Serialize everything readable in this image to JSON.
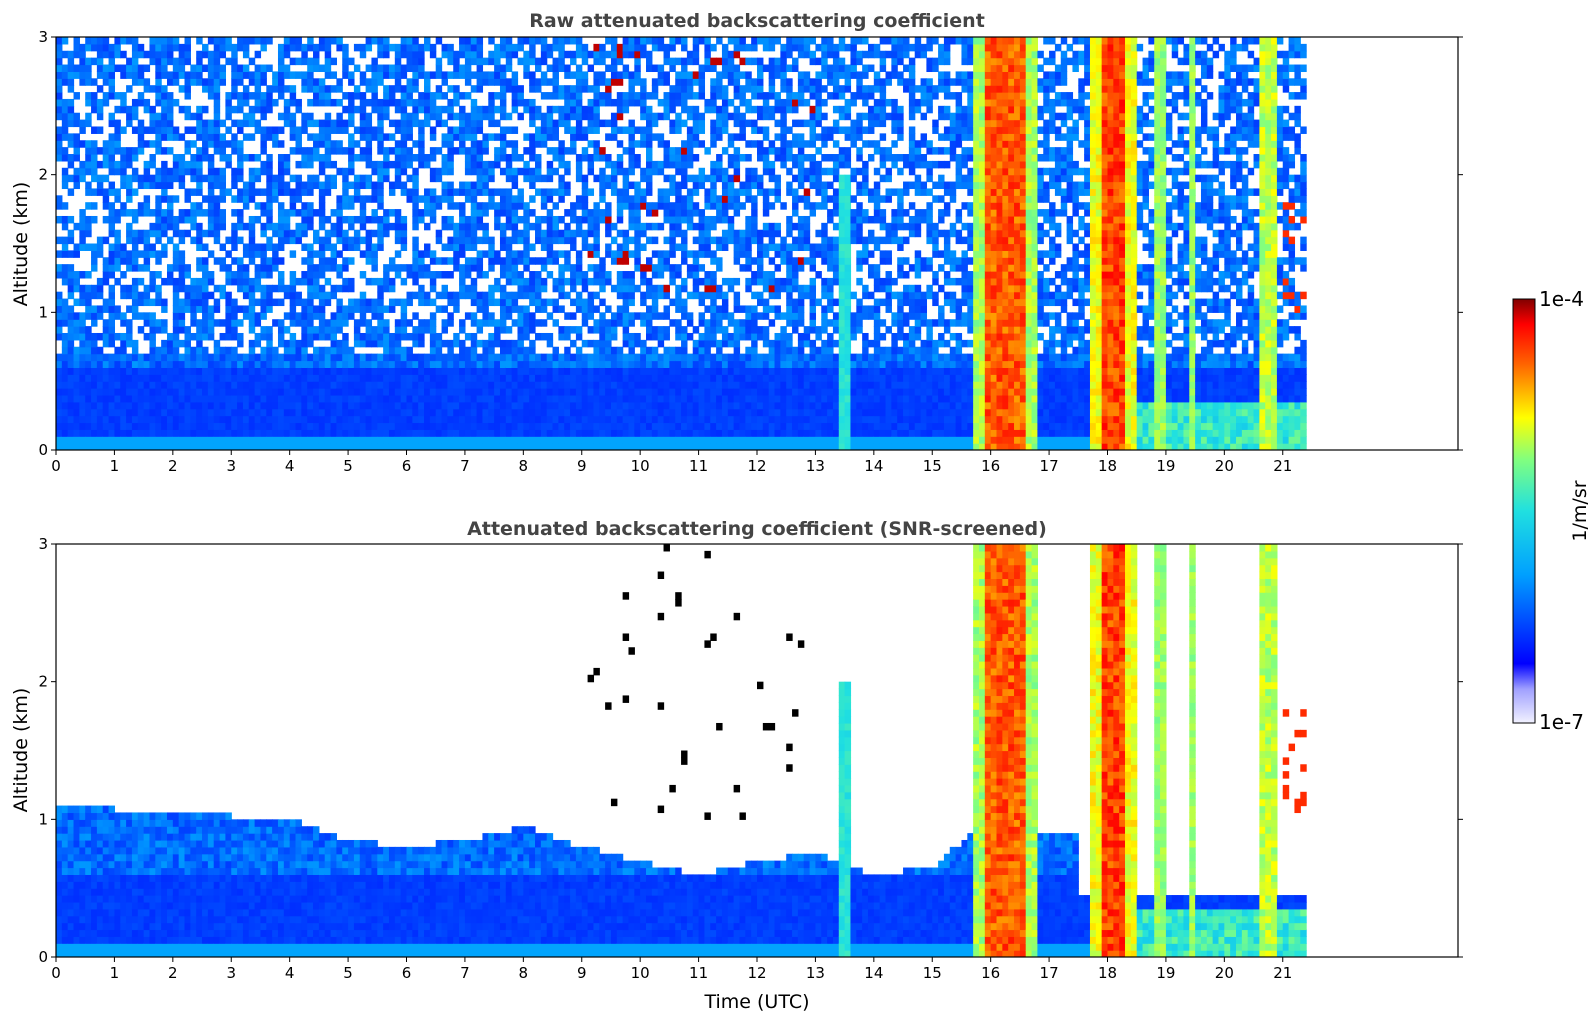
{
  "chart_data": [
    {
      "type": "heatmap",
      "title": "Raw attenuated backscattering coefficient",
      "xlabel": "",
      "ylabel": "Altitude (km)",
      "xlim": [
        0,
        24
      ],
      "ylim": [
        0,
        3
      ],
      "xticks": [
        "0",
        "1",
        "2",
        "3",
        "4",
        "5",
        "6",
        "7",
        "8",
        "9",
        "10",
        "11",
        "12",
        "13",
        "14",
        "15",
        "16",
        "17",
        "18",
        "19",
        "20",
        "21"
      ],
      "yticks": [
        "0",
        "1",
        "2",
        "3"
      ],
      "data_end_hour": 21.4,
      "grid": false,
      "colorbar": {
        "label": "1/m/sr",
        "min_label": "1e-7",
        "max_label": "1e-4",
        "colormap": "jet"
      },
      "features": [
        {
          "kind": "boundary-layer",
          "hours": [
            0,
            15.7
          ],
          "top_km": 0.6,
          "level": "medium-low"
        },
        {
          "kind": "optically-thick-cloud",
          "hours": [
            15.9,
            16.6
          ],
          "altitude_km": [
            0,
            3
          ]
        },
        {
          "kind": "optically-thick-cloud",
          "hours": [
            17.9,
            18.3
          ],
          "altitude_km": [
            0,
            3
          ]
        },
        {
          "kind": "cloud-column",
          "hours": [
            20.6,
            20.9
          ],
          "altitude_km": [
            0,
            3
          ]
        },
        {
          "kind": "aerosol-column",
          "hours": [
            13.4,
            13.6
          ],
          "altitude_km": [
            0,
            2
          ]
        }
      ]
    },
    {
      "type": "heatmap",
      "title": "Attenuated backscattering coefficient (SNR-screened)",
      "xlabel": "Time (UTC)",
      "ylabel": "Altitude (km)",
      "xlim": [
        0,
        24
      ],
      "ylim": [
        0,
        3
      ],
      "xticks": [
        "0",
        "1",
        "2",
        "3",
        "4",
        "5",
        "6",
        "7",
        "8",
        "9",
        "10",
        "11",
        "12",
        "13",
        "14",
        "15",
        "16",
        "17",
        "18",
        "19",
        "20",
        "21"
      ],
      "yticks": [
        "0",
        "1",
        "2",
        "3"
      ],
      "data_end_hour": 21.4,
      "grid": false,
      "boundary_layer_top_km": [
        [
          0,
          1.1
        ],
        [
          2,
          1.05
        ],
        [
          4,
          1.0
        ],
        [
          5,
          0.85
        ],
        [
          6,
          0.8
        ],
        [
          7,
          0.85
        ],
        [
          8,
          0.95
        ],
        [
          9,
          0.8
        ],
        [
          10,
          0.7
        ],
        [
          11,
          0.6
        ],
        [
          12,
          0.7
        ],
        [
          13,
          0.75
        ],
        [
          14,
          0.6
        ],
        [
          15,
          0.65
        ],
        [
          15.7,
          0.9
        ]
      ]
    }
  ],
  "colorbar": {
    "label": "1/m/sr",
    "min_label": "1e-7",
    "max_label": "1e-4"
  }
}
